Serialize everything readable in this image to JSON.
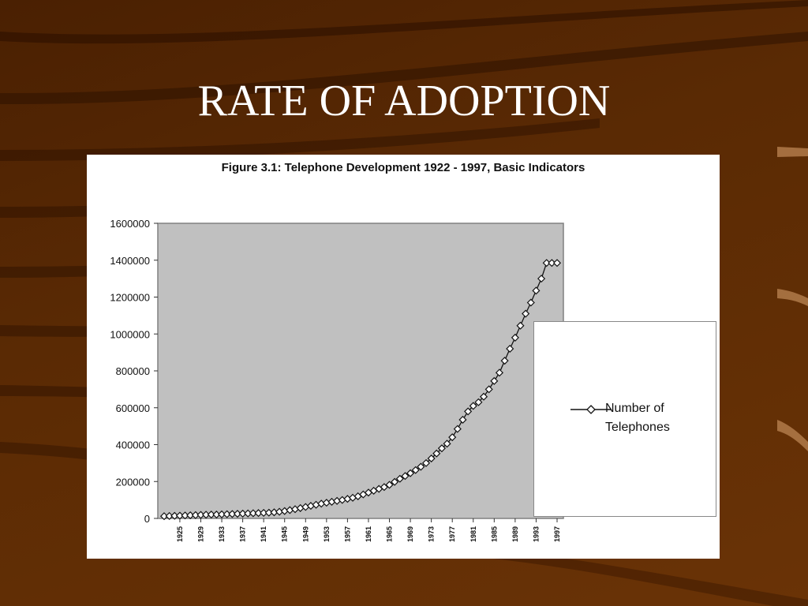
{
  "slide": {
    "title": "RATE OF ADOPTION"
  },
  "chart_data": {
    "type": "line",
    "title": "Figure 3.1: Telephone Development 1922 - 1997, Basic Indicators",
    "xlabel": "",
    "ylabel": "",
    "ylim": [
      0,
      1600000
    ],
    "yticks": [
      0,
      200000,
      400000,
      600000,
      800000,
      1000000,
      1200000,
      1400000,
      1600000
    ],
    "xticks": [
      1925,
      1929,
      1933,
      1937,
      1941,
      1945,
      1949,
      1953,
      1957,
      1961,
      1965,
      1969,
      1973,
      1977,
      1981,
      1985,
      1989,
      1993,
      1997
    ],
    "grid": false,
    "legend_position": "right",
    "plot_background": "#c0c0c0",
    "series": [
      {
        "name": "Number of Telephones",
        "marker": "diamond",
        "x": [
          1922,
          1923,
          1924,
          1925,
          1926,
          1927,
          1928,
          1929,
          1930,
          1931,
          1932,
          1933,
          1934,
          1935,
          1936,
          1937,
          1938,
          1939,
          1940,
          1941,
          1942,
          1943,
          1944,
          1945,
          1946,
          1947,
          1948,
          1949,
          1950,
          1951,
          1952,
          1953,
          1954,
          1955,
          1956,
          1957,
          1958,
          1959,
          1960,
          1961,
          1962,
          1963,
          1964,
          1965,
          1966,
          1967,
          1968,
          1969,
          1970,
          1971,
          1972,
          1973,
          1974,
          1975,
          1976,
          1977,
          1978,
          1979,
          1980,
          1981,
          1982,
          1983,
          1984,
          1985,
          1986,
          1987,
          1988,
          1989,
          1990,
          1991,
          1992,
          1993,
          1994,
          1995,
          1996,
          1997
        ],
        "values": [
          12000,
          13000,
          14000,
          15000,
          16000,
          17000,
          18000,
          19000,
          20000,
          21000,
          21000,
          22000,
          23000,
          24000,
          25000,
          26000,
          27000,
          28000,
          29000,
          30000,
          31000,
          33000,
          36000,
          40000,
          45000,
          50000,
          56000,
          62000,
          68000,
          74000,
          80000,
          85000,
          90000,
          95000,
          100000,
          106000,
          112000,
          120000,
          130000,
          140000,
          150000,
          160000,
          170000,
          182000,
          198000,
          215000,
          230000,
          245000,
          262000,
          280000,
          300000,
          325000,
          352000,
          380000,
          405000,
          440000,
          485000,
          535000,
          580000,
          610000,
          630000,
          660000,
          700000,
          745000,
          790000,
          855000,
          920000,
          980000,
          1045000,
          1110000,
          1170000,
          1235000,
          1300000,
          1385000,
          1385000,
          1385000
        ]
      }
    ]
  }
}
